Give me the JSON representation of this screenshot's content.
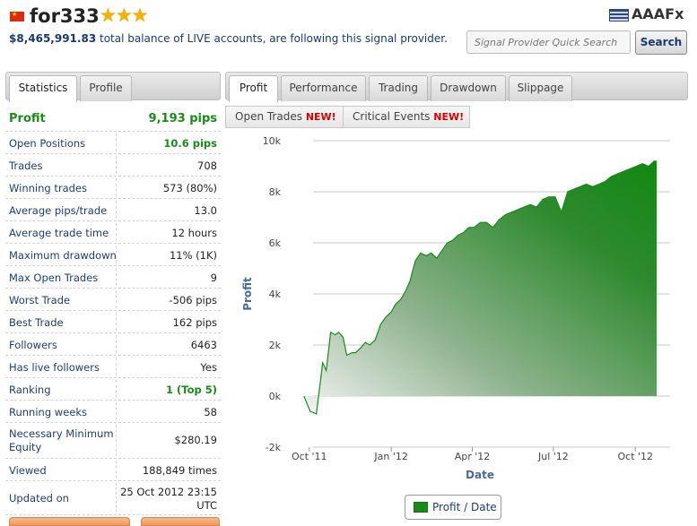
{
  "header": {
    "provider_name": "for333",
    "stars": "★★★",
    "balance_amount": "$8,465,991.83",
    "balance_text": " total balance of LIVE accounts, are following this signal provider.",
    "logo_text": "AAAFx",
    "search_placeholder": "Signal Provider Quick Search",
    "search_button": "Search"
  },
  "left_tabs": [
    {
      "label": "Statistics",
      "active": true
    },
    {
      "label": "Profile",
      "active": false
    }
  ],
  "right_tabs": [
    {
      "label": "Profit",
      "active": true
    },
    {
      "label": "Performance",
      "active": false
    },
    {
      "label": "Trading",
      "active": false
    },
    {
      "label": "Drawdown",
      "active": false
    },
    {
      "label": "Slippage",
      "active": false
    }
  ],
  "sub_tabs": [
    {
      "label": "Open Trades",
      "badge": "NEW!"
    },
    {
      "label": "Critical Events",
      "badge": "NEW!"
    }
  ],
  "stats": [
    {
      "key": "Profit",
      "value": "9,193 pips"
    },
    {
      "key": "Open Positions",
      "value": "10.6 pips"
    },
    {
      "key": "Trades",
      "value": "708"
    },
    {
      "key": "Winning trades",
      "value": "573 (80%)"
    },
    {
      "key": "Average pips/trade",
      "value": "13.0"
    },
    {
      "key": "Average trade time",
      "value": "12 hours"
    },
    {
      "key": "Maximum drawdown",
      "value": "11% (1K)"
    },
    {
      "key": "Max Open Trades",
      "value": "9"
    },
    {
      "key": "Worst Trade",
      "value": "-506 pips"
    },
    {
      "key": "Best Trade",
      "value": "162 pips"
    },
    {
      "key": "Followers",
      "value": "6463"
    },
    {
      "key": "Has live followers",
      "value": "Yes"
    },
    {
      "key": "Ranking",
      "value_main": "1",
      "value_suffix": " (Top 5)"
    },
    {
      "key": "Running weeks",
      "value": "58"
    },
    {
      "key_line1": "Necessary Minimum",
      "key_line2": "Equity",
      "value": "$280.19"
    },
    {
      "key": "Viewed",
      "value": "188,849 times"
    },
    {
      "key": "Updated on",
      "value_line1": "25 Oct 2012 23:15",
      "value_line2": "UTC"
    }
  ],
  "colors": {
    "accent_green": "#1a8a1a",
    "label_blue": "#1e3e6e",
    "new_red": "#d40000"
  },
  "chart_data": {
    "type": "area",
    "ylabel": "Profit",
    "xlabel": "Date",
    "legend": "Profit / Date",
    "ylim": [
      -2000,
      10000
    ],
    "yticks": [
      "-2k",
      "0k",
      "2k",
      "4k",
      "6k",
      "8k",
      "10k"
    ],
    "ytick_values": [
      -2000,
      0,
      2000,
      4000,
      6000,
      8000,
      10000
    ],
    "xticks": [
      "Oct '11",
      "Jan '12",
      "Apr '12",
      "Jul '12",
      "Oct '12"
    ],
    "xtick_dates": [
      "2011-10-01",
      "2012-01-01",
      "2012-04-01",
      "2012-07-01",
      "2012-10-01"
    ],
    "x": [
      "2011-09-25",
      "2011-10-02",
      "2011-10-09",
      "2011-10-16",
      "2011-10-20",
      "2011-10-25",
      "2011-10-30",
      "2011-11-03",
      "2011-11-08",
      "2011-11-12",
      "2011-11-18",
      "2011-11-22",
      "2011-11-28",
      "2011-12-03",
      "2011-12-08",
      "2011-12-14",
      "2011-12-20",
      "2011-12-26",
      "2012-01-01",
      "2012-01-06",
      "2012-01-12",
      "2012-01-17",
      "2012-01-22",
      "2012-01-28",
      "2012-02-03",
      "2012-02-09",
      "2012-02-15",
      "2012-02-21",
      "2012-02-27",
      "2012-03-04",
      "2012-03-10",
      "2012-03-16",
      "2012-03-22",
      "2012-03-28",
      "2012-04-03",
      "2012-04-10",
      "2012-04-17",
      "2012-04-24",
      "2012-05-01",
      "2012-05-08",
      "2012-05-15",
      "2012-05-22",
      "2012-05-29",
      "2012-06-05",
      "2012-06-12",
      "2012-06-19",
      "2012-06-26",
      "2012-07-03",
      "2012-07-10",
      "2012-07-17",
      "2012-07-24",
      "2012-07-31",
      "2012-08-07",
      "2012-08-14",
      "2012-08-21",
      "2012-08-28",
      "2012-09-04",
      "2012-09-11",
      "2012-09-18",
      "2012-09-25",
      "2012-10-02",
      "2012-10-09",
      "2012-10-16",
      "2012-10-22",
      "2012-10-25"
    ],
    "y": [
      0,
      -600,
      -700,
      1300,
      1000,
      2500,
      2400,
      2500,
      2300,
      1600,
      1700,
      1700,
      1900,
      2100,
      2000,
      2200,
      2800,
      3100,
      3300,
      3600,
      3800,
      4100,
      4500,
      5300,
      5600,
      5500,
      5600,
      5400,
      5700,
      6000,
      6100,
      6300,
      6400,
      6600,
      6600,
      6800,
      6800,
      6600,
      6900,
      7100,
      7200,
      7300,
      7400,
      7500,
      7400,
      7700,
      7800,
      7800,
      7200,
      8000,
      8100,
      8200,
      8300,
      8200,
      8300,
      8400,
      8600,
      8700,
      8800,
      8900,
      9000,
      9100,
      9000,
      9200,
      9200
    ]
  }
}
